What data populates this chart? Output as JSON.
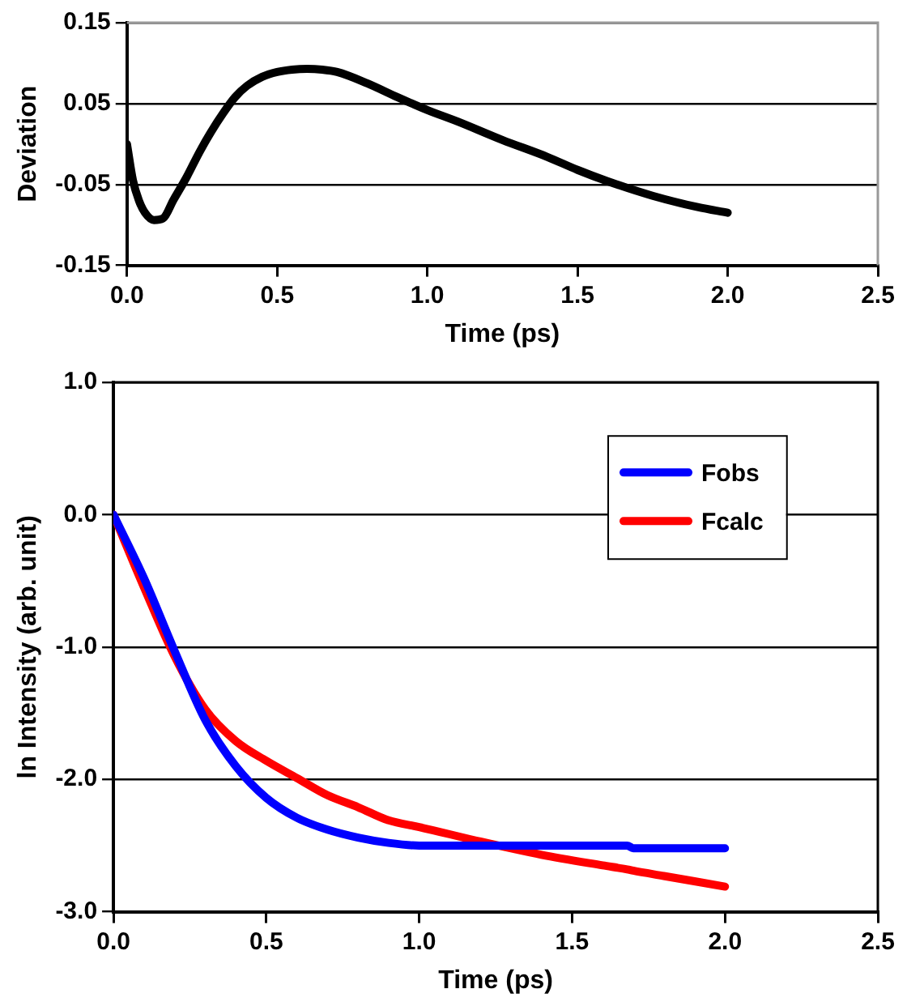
{
  "chart_data": [
    {
      "type": "line",
      "xlabel": "Time (ps)",
      "ylabel": "Deviation",
      "x": [
        0,
        0.02,
        0.04,
        0.06,
        0.09,
        0.12,
        0.155,
        0.2,
        0.24,
        0.28,
        0.32,
        0.36,
        0.4,
        0.45,
        0.5,
        0.55,
        0.6,
        0.65,
        0.7,
        0.8,
        0.9,
        1.0,
        1.1,
        1.25,
        1.4,
        1.5,
        1.6,
        1.75,
        1.9,
        2.0
      ],
      "series": [
        {
          "color": "#000000",
          "values": [
            0,
            -0.045,
            -0.07,
            -0.085,
            -0.094,
            -0.092,
            -0.069,
            -0.04,
            -0.011,
            0.015,
            0.038,
            0.058,
            0.072,
            0.083,
            0.089,
            0.092,
            0.093,
            0.092,
            0.089,
            0.075,
            0.058,
            0.042,
            0.028,
            0.005,
            -0.016,
            -0.032,
            -0.046,
            -0.064,
            -0.078,
            -0.085
          ]
        }
      ],
      "xlim": [
        0,
        2.5
      ],
      "xticks": [
        {
          "value": 0,
          "label": "0.0"
        },
        0.5,
        {
          "value": 1,
          "label": "1.0"
        },
        1.5,
        {
          "value": 2,
          "label": "2.0"
        },
        2.5
      ],
      "ylim": [
        -0.15,
        0.15
      ],
      "yticks": [
        -0.15,
        -0.05,
        0.05,
        0.15
      ],
      "grid": "y",
      "legend": false,
      "marker": "none",
      "line_style": "solid"
    },
    {
      "type": "line",
      "xlabel": "Time (ps)",
      "ylabel": "ln Intensity (arb. unit)",
      "x": [
        0,
        0.1,
        0.2,
        0.3,
        0.4,
        0.5,
        0.6,
        0.7,
        0.8,
        0.9,
        1.0,
        1.2,
        1.4,
        1.6,
        1.68,
        1.7,
        1.8,
        2.0
      ],
      "series": [
        {
          "name": "Fobs",
          "color": "#0000ff",
          "values": [
            0,
            -0.48,
            -1.03,
            -1.55,
            -1.9,
            -2.14,
            -2.29,
            -2.38,
            -2.44,
            -2.48,
            -2.5,
            -2.5,
            -2.5,
            -2.5,
            -2.5,
            -2.52,
            -2.52,
            -2.52
          ]
        },
        {
          "name": "Fcalc",
          "color": "#ff0000",
          "values": [
            0,
            -0.55,
            -1.07,
            -1.47,
            -1.71,
            -1.86,
            -1.99,
            -2.12,
            -2.21,
            -2.31,
            -2.36,
            -2.47,
            -2.57,
            -2.65,
            -2.68,
            -2.69,
            -2.73,
            -2.81
          ]
        }
      ],
      "xlim": [
        0,
        2.5
      ],
      "xticks": [
        {
          "value": 0,
          "label": "0.0"
        },
        0.5,
        {
          "value": 1,
          "label": "1.0"
        },
        1.5,
        {
          "value": 2,
          "label": "2.0"
        },
        2.5
      ],
      "ylim": [
        -3,
        1
      ],
      "yticks": [
        {
          "value": -3,
          "label": "-3.0"
        },
        {
          "value": -2,
          "label": "-2.0"
        },
        {
          "value": -1,
          "label": "-1.0"
        },
        {
          "value": 0,
          "label": "0.0"
        },
        {
          "value": 1,
          "label": "1.0"
        }
      ],
      "grid": "y",
      "legend": "top right",
      "marker": "none",
      "line_style": "solid"
    }
  ]
}
